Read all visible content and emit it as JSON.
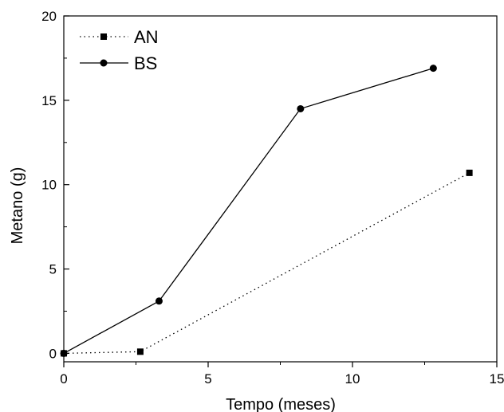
{
  "chart_data": {
    "type": "line",
    "title": "",
    "xlabel": "Tempo (meses)",
    "ylabel": "Metano (g)",
    "xlim": [
      0,
      15
    ],
    "ylim": [
      -0.5,
      20
    ],
    "xticks": [
      0,
      5,
      10,
      15
    ],
    "yticks": [
      0,
      5,
      10,
      15,
      20
    ],
    "grid": false,
    "legend_position": "top-left",
    "series": [
      {
        "name": "AN",
        "marker": "square",
        "line_style": "dotted",
        "color": "#000000",
        "x": [
          0,
          2.65,
          14.05
        ],
        "y": [
          0,
          0.1,
          10.7
        ]
      },
      {
        "name": "BS",
        "marker": "circle",
        "line_style": "solid",
        "color": "#000000",
        "x": [
          0,
          3.3,
          8.2,
          12.8
        ],
        "y": [
          0,
          3.1,
          14.5,
          16.9
        ]
      }
    ]
  }
}
